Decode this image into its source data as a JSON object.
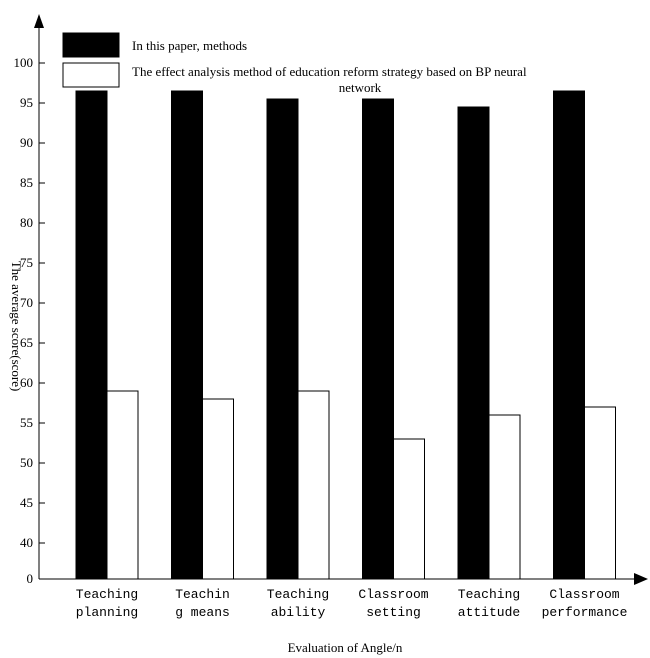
{
  "chart_data": {
    "type": "bar",
    "categories": [
      [
        "Teaching",
        "planning"
      ],
      [
        "Teachin",
        "g means"
      ],
      [
        "Teaching",
        "ability"
      ],
      [
        "Classroom",
        "setting"
      ],
      [
        "Teaching",
        "attitude"
      ],
      [
        "Classroom",
        "performance"
      ]
    ],
    "series": [
      {
        "name": "In this paper, methods",
        "color": "#000000",
        "values": [
          96.5,
          96.5,
          95.5,
          95.5,
          94.5,
          96.5
        ]
      },
      {
        "name": "The effect analysis method of education reform strategy based on BP neural network",
        "name_lines": [
          "The effect analysis method of education reform strategy based on BP neural",
          "network"
        ],
        "color": "#ffffff",
        "values": [
          59,
          58,
          59,
          53,
          56,
          57
        ]
      }
    ],
    "xlabel": "Evaluation of Angle/n",
    "ylabel": "The average score(score)",
    "yticks": [
      0,
      40,
      45,
      50,
      55,
      60,
      65,
      70,
      75,
      80,
      85,
      90,
      95,
      100
    ],
    "ylim_note": "broken axis: 0 then 40-100",
    "legend_position": "top",
    "grid": false
  }
}
